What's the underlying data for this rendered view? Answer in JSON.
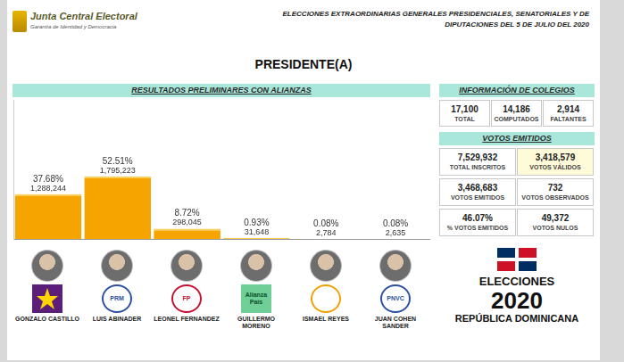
{
  "header": {
    "org": "Junta Central Electoral",
    "tagline": "Garantía de Identidad y Democracia",
    "title": "ELECCIONES EXTRAORDINARIAS GENERALES PRESIDENCIALES, SENATORIALES Y DE DIPUTACIONES DEL 5 DE JULIO DEL 2020"
  },
  "chart_data": {
    "type": "bar",
    "title": "PRESIDENTE(A)",
    "subtitle": "RESULTADOS PRELIMINARES CON ALIANZAS",
    "categories": [
      "GONZALO CASTILLO",
      "LUIS ABINADER",
      "LEONEL FERNANDEZ",
      "GUILLERMO MORENO",
      "ISMAEL REYES",
      "JUAN COHEN SANDER"
    ],
    "values": [
      1288244,
      1795223,
      298045,
      31648,
      2784,
      2635
    ],
    "value_labels": [
      "1,288,244",
      "1,795,223",
      "298,045",
      "31,648",
      "2,784",
      "2,635"
    ],
    "share_labels": [
      "37.68%",
      "52.51%",
      "8.72%",
      "0.93%",
      "0.08%",
      "0.08%"
    ],
    "party_labels": [
      null,
      "PRM",
      "FP",
      "Alianza País",
      null,
      "PNVC"
    ],
    "color": "#f5a400",
    "ylim": [
      0,
      4000000
    ],
    "grid": false,
    "tick_labels": false,
    "data_labels": true
  },
  "info": {
    "colegios": {
      "title": "INFORMACIÓN DE COLEGIOS",
      "items": [
        {
          "value": "17,100",
          "label": "TOTAL"
        },
        {
          "value": "14,186",
          "label": "COMPUTADOS"
        },
        {
          "value": "2,914",
          "label": "FALTANTES"
        }
      ]
    },
    "votos": {
      "title": "VOTOS EMITIDOS",
      "items": [
        {
          "value": "7,529,932",
          "label": "TOTAL INSCRITOS"
        },
        {
          "value": "3,418,579",
          "label": "VOTOS VÁLIDOS"
        },
        {
          "value": "3,468,683",
          "label": "VOTOS EMITIDOS"
        },
        {
          "value": "732",
          "label": "VOTOS OBSERVADOS"
        },
        {
          "value": "46.07%",
          "label": "% VOTOS EMITIDOS"
        },
        {
          "value": "49,372",
          "label": "VOTOS NULOS"
        }
      ]
    }
  },
  "logo": {
    "line1": "ELECCIONES",
    "line2": "2020",
    "line3": "REPÚBLICA DOMINICANA"
  }
}
